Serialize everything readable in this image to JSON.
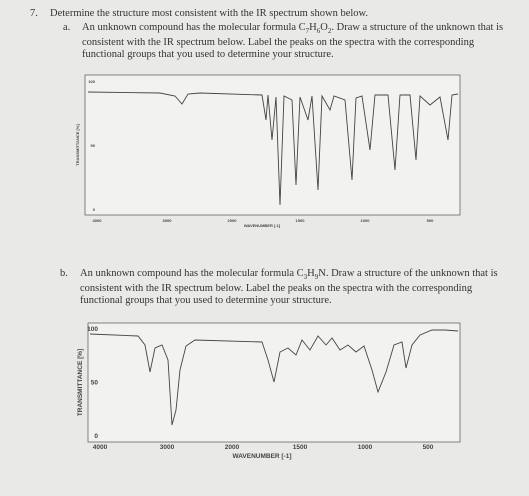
{
  "question": {
    "number": "7.",
    "text": "Determine the structure most consistent with the IR spectrum shown below."
  },
  "parts": [
    {
      "label": "a.",
      "runs": [
        {
          "t": "An unknown compound has the molecular formula C"
        },
        {
          "sub": "7"
        },
        {
          "t": "H"
        },
        {
          "sub": "6"
        },
        {
          "t": "O"
        },
        {
          "sub": "2"
        },
        {
          "t": ". Draw a structure of the unknown that is consistent with the IR spectrum below. Label the peaks on the spectra with the corresponding functional groups that you used to determine your structure."
        }
      ],
      "spectrum": {
        "ylabel": "TRANSMITTANCE [%]",
        "xlabel": "WAVENUMBER [-1]",
        "yticks": [
          100,
          50,
          0
        ],
        "xticks": [
          4000,
          3000,
          2000,
          1500,
          1000,
          500
        ]
      }
    },
    {
      "label": "b.",
      "runs": [
        {
          "t": "An unknown compound has the molecular formula C"
        },
        {
          "sub": "3"
        },
        {
          "t": "H"
        },
        {
          "sub": "9"
        },
        {
          "t": "N. Draw a structure of the unknown that is consistent with the IR spectrum below. Label the peaks on the spectra with the corresponding functional groups that you used to determine your structure."
        }
      ],
      "spectrum": {
        "ylabel": "TRANSMITTANCE [%]",
        "xlabel": "WAVENUMBER [-1]",
        "yticks": [
          100,
          50,
          0
        ],
        "xticks": [
          4000,
          3000,
          2000,
          1500,
          1000,
          500
        ]
      }
    }
  ]
}
